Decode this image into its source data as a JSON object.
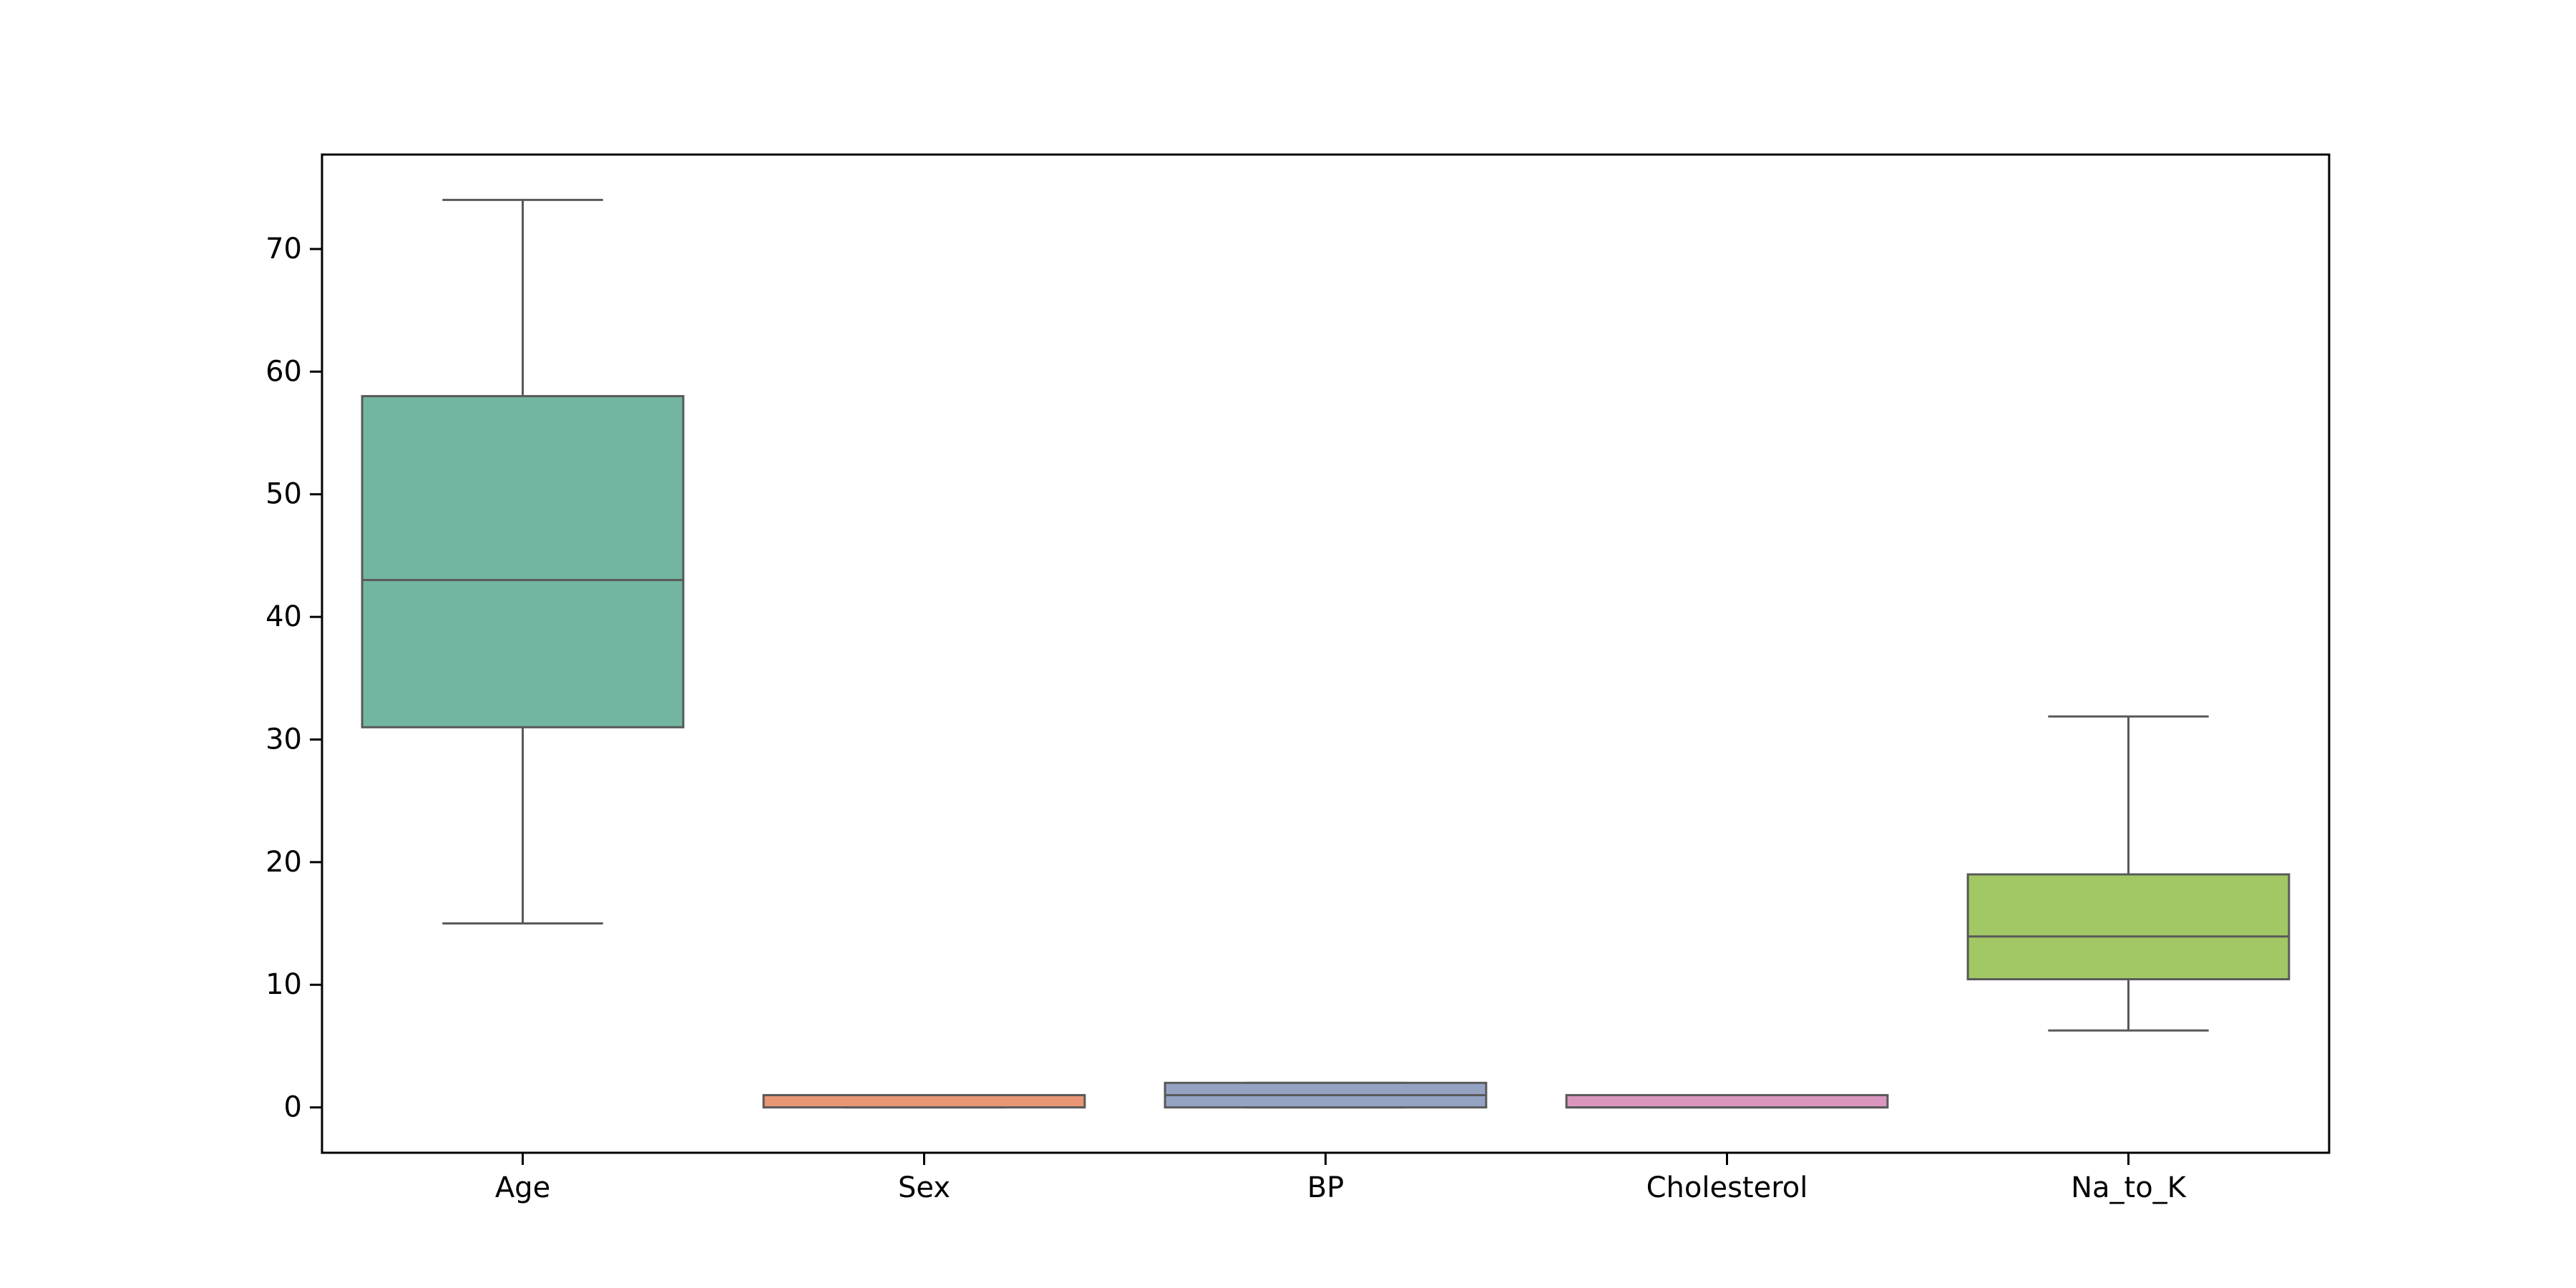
{
  "chart_data": {
    "type": "boxplot",
    "categories": [
      "Age",
      "Sex",
      "BP",
      "Cholesterol",
      "Na_to_K"
    ],
    "boxes": [
      {
        "name": "Age",
        "whislo": 15,
        "q1": 31,
        "med": 43,
        "q3": 58,
        "whishi": 74,
        "color": "#72b6a1"
      },
      {
        "name": "Sex",
        "whislo": 0,
        "q1": 0,
        "med": 1,
        "q3": 1,
        "whishi": 1,
        "color": "#e99675"
      },
      {
        "name": "BP",
        "whislo": 0,
        "q1": 0,
        "med": 1,
        "q3": 2,
        "whishi": 2,
        "color": "#95a3c3"
      },
      {
        "name": "Cholesterol",
        "whislo": 0,
        "q1": 0,
        "med": 0,
        "q3": 1,
        "whishi": 1,
        "color": "#db96c0"
      },
      {
        "name": "Na_to_K",
        "whislo": 6.27,
        "q1": 10.45,
        "med": 13.94,
        "q3": 19.0,
        "whishi": 31.88,
        "color": "#a2c865"
      }
    ],
    "yticks": [
      0,
      10,
      20,
      30,
      40,
      50,
      60,
      70
    ],
    "ylim": [
      -3.7,
      77.7
    ],
    "title": "",
    "xlabel": "",
    "ylabel": "",
    "grid": false,
    "line_color": "#595959"
  }
}
